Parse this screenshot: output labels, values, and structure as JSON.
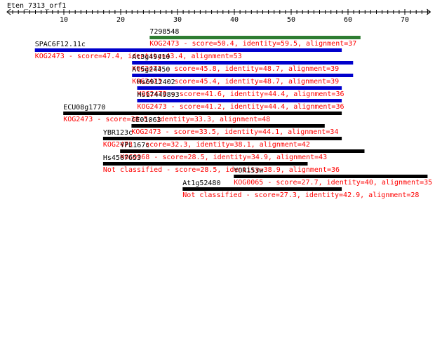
{
  "title": "Eten_7313_orf1",
  "axis": {
    "min": 0,
    "max": 74,
    "major_ticks": [
      10,
      20,
      30,
      40,
      50,
      60,
      70
    ],
    "minor_step": 1
  },
  "colors": {
    "axis": "#000000",
    "hit_label": "#000000",
    "hit_detail": "#ff0000",
    "bar_green": "#2e7d32",
    "bar_blue": "#0000cc",
    "bar_black": "#000000"
  },
  "hits": [
    {
      "name": "7298548",
      "detail": "KOG2473 - score=50.4, identity=59.5, alignment=37",
      "start": 25.1,
      "end": 62.2,
      "color": "bar_green"
    },
    {
      "name": "SPAC6F12.11c",
      "detail": "KOG2473 - score=47.4, identity=43.4, alignment=53",
      "start": 4.9,
      "end": 58.9,
      "color": "bar_blue"
    },
    {
      "name": "At3g49410",
      "detail": "KOG2473 - score=45.8, identity=48.7, alignment=39",
      "start": 22.0,
      "end": 60.9,
      "color": "bar_blue"
    },
    {
      "name": "At5g24450",
      "detail": "KOG2473 - score=45.4, identity=48.7, alignment=39",
      "start": 22.0,
      "end": 60.9,
      "color": "bar_blue"
    },
    {
      "name": "Hs6912402",
      "detail": "KOG2473 - score=41.6, identity=44.4, alignment=36",
      "start": 22.9,
      "end": 58.9,
      "color": "bar_blue"
    },
    {
      "name": "Hs17449893",
      "detail": "KOG2473 - score=41.2, identity=44.4, alignment=36",
      "start": 22.9,
      "end": 58.9,
      "color": "bar_blue"
    },
    {
      "name": "ECU08g1770",
      "detail": "KOG2473 - score=38.5, identity=33.3, alignment=48",
      "start": 9.9,
      "end": 58.9,
      "color": "bar_black"
    },
    {
      "name": "CE01063",
      "detail": "KOG2473 - score=33.5, identity=44.1, alignment=34",
      "start": 21.9,
      "end": 55.9,
      "color": "bar_black"
    },
    {
      "name": "YBR123c",
      "detail": "KOG2473 - score=32.3, identity=38.1, alignment=42",
      "start": 16.9,
      "end": 58.9,
      "color": "bar_black"
    },
    {
      "name": "YPL167c",
      "detail": "KOG0968 - score=28.5, identity=34.9, alignment=43",
      "start": 19.9,
      "end": 62.9,
      "color": "bar_black"
    },
    {
      "name": "Hs4507653",
      "detail": "Not classified - score=28.5, identity=38.9, alignment=36",
      "start": 16.9,
      "end": 52.9,
      "color": "bar_black"
    },
    {
      "name": "YOR153w",
      "detail": "KOG0065 - score=27.7, identity=40, alignment=35",
      "start": 39.9,
      "end": 74.0,
      "color": "bar_black"
    },
    {
      "name": "At1g52480",
      "detail": "Not classified - score=27.3, identity=42.9, alignment=28",
      "start": 30.9,
      "end": 58.9,
      "color": "bar_black"
    }
  ]
}
